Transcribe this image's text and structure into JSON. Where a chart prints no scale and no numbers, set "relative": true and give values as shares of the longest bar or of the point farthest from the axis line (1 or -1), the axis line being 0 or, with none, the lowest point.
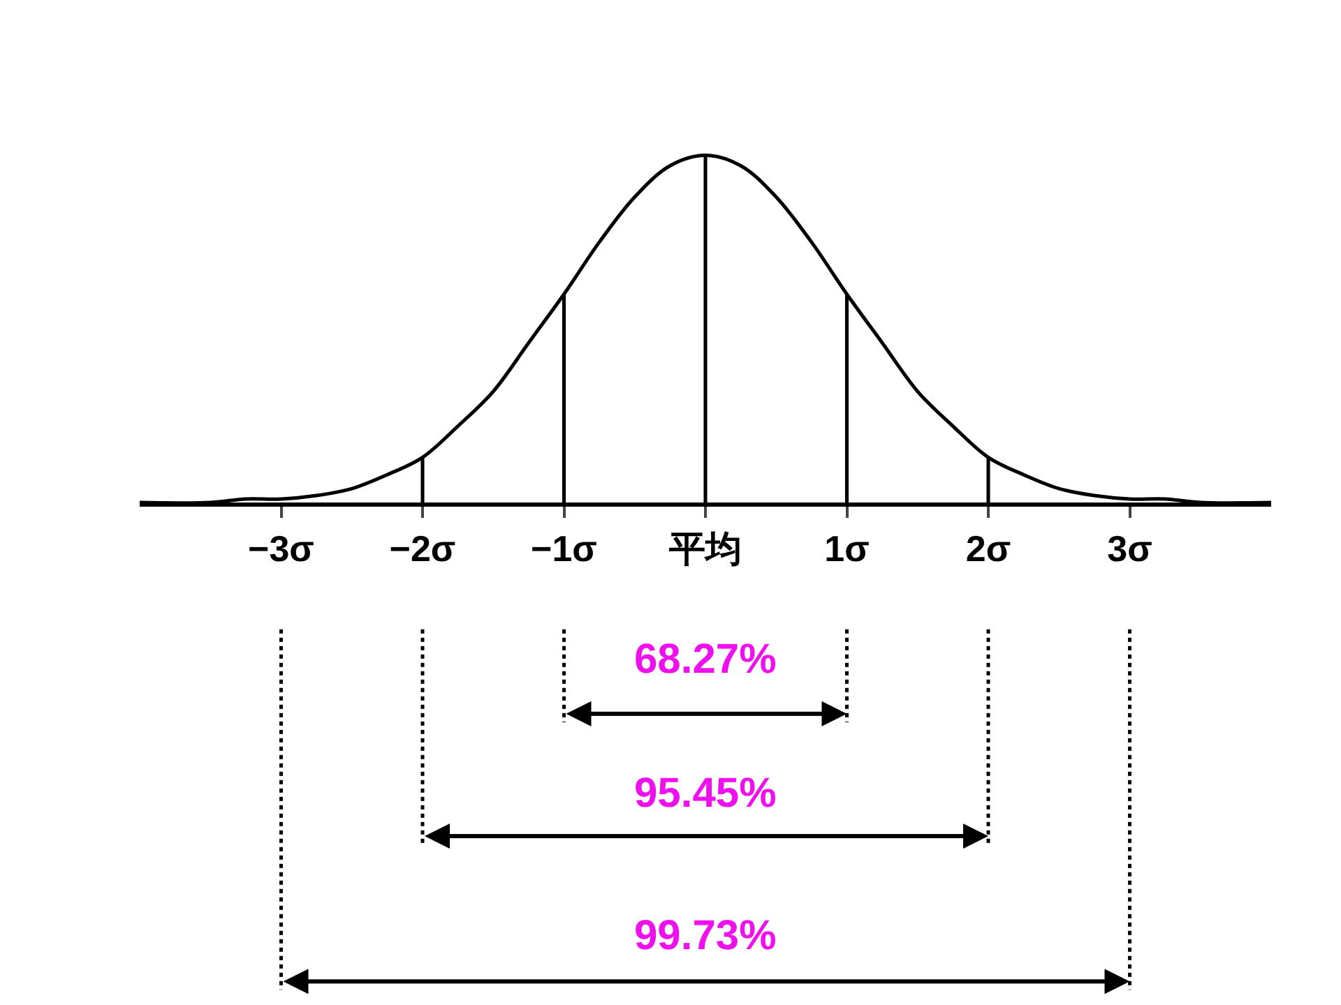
{
  "chart_data": {
    "type": "line",
    "relative": true,
    "x": [
      -4,
      -3.5,
      -3.25,
      -3,
      -2.75,
      -2.5,
      -2.25,
      -2,
      -1.75,
      -1.5,
      -1.25,
      -1,
      -0.75,
      -0.5,
      -0.25,
      0,
      0.25,
      0.5,
      0.75,
      1,
      1.25,
      1.5,
      1.75,
      2,
      2.25,
      2.5,
      2.75,
      3,
      3.25,
      3.5,
      4
    ],
    "series": [
      {
        "color": "#000000",
        "values": [
          0.0,
          0.0,
          0.01,
          0.01,
          0.02,
          0.04,
          0.08,
          0.13,
          0.22,
          0.32,
          0.46,
          0.6,
          0.75,
          0.88,
          0.97,
          1,
          0.97,
          0.88,
          0.75,
          0.6,
          0.46,
          0.32,
          0.22,
          0.13,
          0.08,
          0.04,
          0.02,
          0.01,
          0.01,
          0.0,
          0.0
        ]
      },
      {
        "type": "bar",
        "color": "#000000",
        "x": [
          -2,
          -1,
          0,
          1,
          2
        ],
        "values": [
          0.13,
          0.6,
          1,
          0.6,
          0.13
        ]
      }
    ],
    "xlim": [
      -4,
      4
    ],
    "xticks": [
      {
        "value": -3,
        "label": "−3σ"
      },
      {
        "value": -2,
        "label": "−2σ"
      },
      {
        "value": -1,
        "label": "−1σ"
      },
      {
        "value": 0,
        "label": "平均"
      },
      {
        "value": 1,
        "label": "1σ"
      },
      {
        "value": 2,
        "label": "2σ"
      },
      {
        "value": 3,
        "label": "3σ"
      }
    ],
    "tick_labels": "x",
    "marker": "none",
    "line_style": "solid",
    "annotations": [
      "68.27%",
      "95.45%",
      "99.73%"
    ]
  }
}
